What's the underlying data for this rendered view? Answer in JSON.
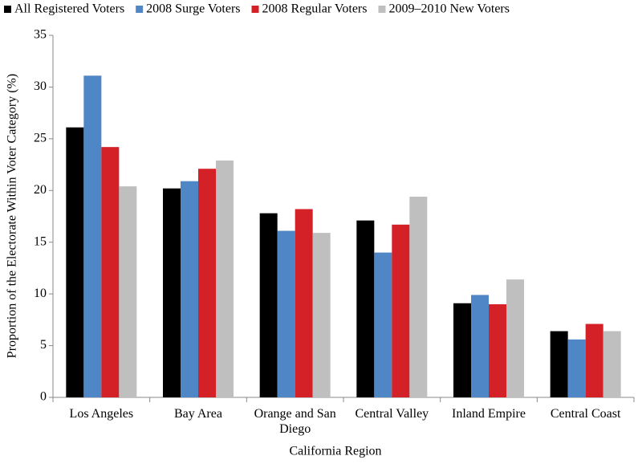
{
  "chart_data": {
    "type": "bar",
    "x_label": "California Region",
    "y_label": "Proportion of the Electorate Within Voter Category (%)",
    "categories": [
      "Los Angeles",
      "Bay Area",
      "Orange and San Diego",
      "Central Valley",
      "Inland Empire",
      "Central Coast"
    ],
    "series": [
      {
        "name": "All Registered Voters",
        "color": "#000000",
        "values": [
          26.1,
          20.2,
          17.8,
          17.1,
          9.1,
          6.4
        ]
      },
      {
        "name": "2008 Surge Voters",
        "color": "#4f86c6",
        "values": [
          31.1,
          20.9,
          16.1,
          14.0,
          9.9,
          5.6
        ]
      },
      {
        "name": "2008 Regular Voters",
        "color": "#d42027",
        "values": [
          24.2,
          22.1,
          18.2,
          16.7,
          9.0,
          7.1
        ]
      },
      {
        "name": "2009–2010 New Voters",
        "color": "#bfbfbf",
        "values": [
          20.4,
          22.9,
          15.9,
          19.4,
          11.4,
          6.4
        ]
      }
    ],
    "ylim": [
      0,
      35
    ],
    "yticks": [
      0,
      5,
      10,
      15,
      20,
      25,
      30,
      35
    ],
    "grid": false,
    "legend_position": "top"
  }
}
